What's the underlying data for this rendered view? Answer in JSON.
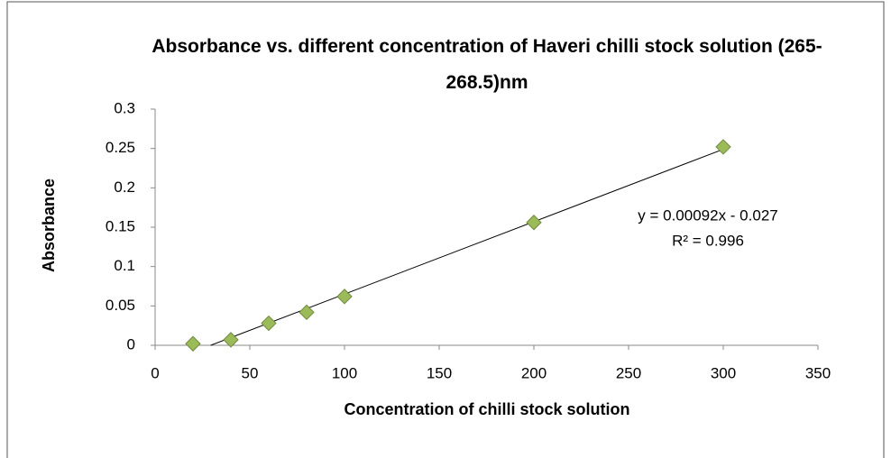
{
  "chart_data": {
    "type": "scatter",
    "title": "Absorbance vs. different concentration of Haveri chilli stock solution (265-268.5)nm",
    "xlabel": "Concentration of chilli stock solution",
    "ylabel": "Absorbance",
    "series": [
      {
        "name": "Absorbance",
        "color": "#9bbb59",
        "x": [
          20,
          40,
          60,
          80,
          100,
          200,
          300
        ],
        "values": [
          0.002,
          0.007,
          0.028,
          0.042,
          0.062,
          0.156,
          0.252
        ]
      }
    ],
    "trendline": {
      "slope": 0.00092,
      "intercept": -0.027,
      "equation": "y = 0.00092x - 0.027",
      "r2": "R² = 0.996"
    },
    "xlim": [
      0,
      350
    ],
    "xticks": [
      0,
      50,
      100,
      150,
      200,
      250,
      300,
      350
    ],
    "ylim": [
      0,
      0.3
    ],
    "yticks": [
      0,
      0.05,
      0.1,
      0.15,
      0.2,
      0.25,
      0.3
    ],
    "grid": false
  }
}
